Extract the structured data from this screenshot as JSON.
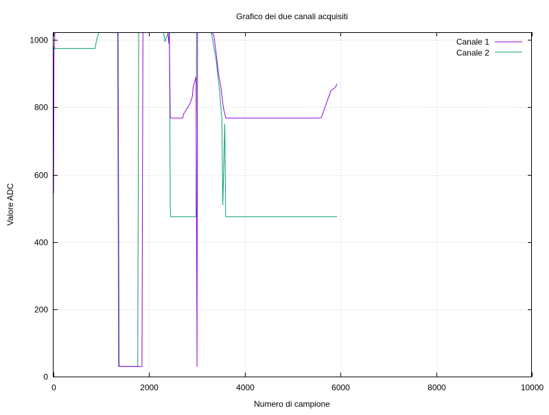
{
  "chart_data": {
    "type": "line",
    "title": "Grafico dei due canali acquisiti",
    "xlabel": "Numero di campione",
    "ylabel": "Valore ADC",
    "xlim": [
      0,
      10000
    ],
    "ylim": [
      0,
      1023
    ],
    "grid": true,
    "legend_position": "top-right",
    "x_ticks": [
      0,
      2000,
      4000,
      6000,
      8000,
      10000
    ],
    "y_ticks": [
      0,
      200,
      400,
      600,
      800,
      1000
    ],
    "series": [
      {
        "name": "Canale 1",
        "color": "#9400d3",
        "style": "line",
        "x": [
          0,
          10,
          30,
          900,
          950,
          1350,
          1370,
          1800,
          1830,
          1850,
          1870,
          2370,
          2390,
          2410,
          2420,
          2440,
          2460,
          2700,
          2720,
          2850,
          2900,
          2920,
          2980,
          3000,
          3010,
          3050,
          3300,
          3350,
          3400,
          3450,
          3500,
          3550,
          3600,
          3650,
          5500,
          5550,
          5600,
          5650,
          5700,
          5750,
          5800,
          5900,
          5920
        ],
        "y": [
          545,
          960,
          1023,
          1023,
          1023,
          1023,
          30,
          30,
          30,
          30,
          1023,
          1023,
          1023,
          990,
          1023,
          770,
          768,
          768,
          780,
          810,
          830,
          860,
          890,
          30,
          1023,
          1023,
          1023,
          1015,
          960,
          900,
          860,
          800,
          768,
          768,
          768,
          768,
          770,
          790,
          810,
          830,
          850,
          860,
          870
        ]
      },
      {
        "name": "Canale 2",
        "color": "#009e73",
        "style": "line",
        "x": [
          0,
          10,
          30,
          870,
          900,
          950,
          1340,
          1360,
          1760,
          1780,
          1800,
          2300,
          2330,
          2400,
          2420,
          2430,
          2440,
          2450,
          2980,
          2990,
          3000,
          3010,
          3050,
          3300,
          3350,
          3400,
          3430,
          3470,
          3500,
          3520,
          3540,
          3580,
          3600,
          5930
        ],
        "y": [
          970,
          980,
          975,
          975,
          1000,
          1023,
          1023,
          30,
          30,
          1023,
          1023,
          1023,
          995,
          1023,
          1023,
          830,
          500,
          475,
          475,
          1023,
          1023,
          1023,
          1023,
          1023,
          980,
          940,
          900,
          850,
          800,
          765,
          510,
          750,
          475,
          475
        ]
      }
    ]
  }
}
